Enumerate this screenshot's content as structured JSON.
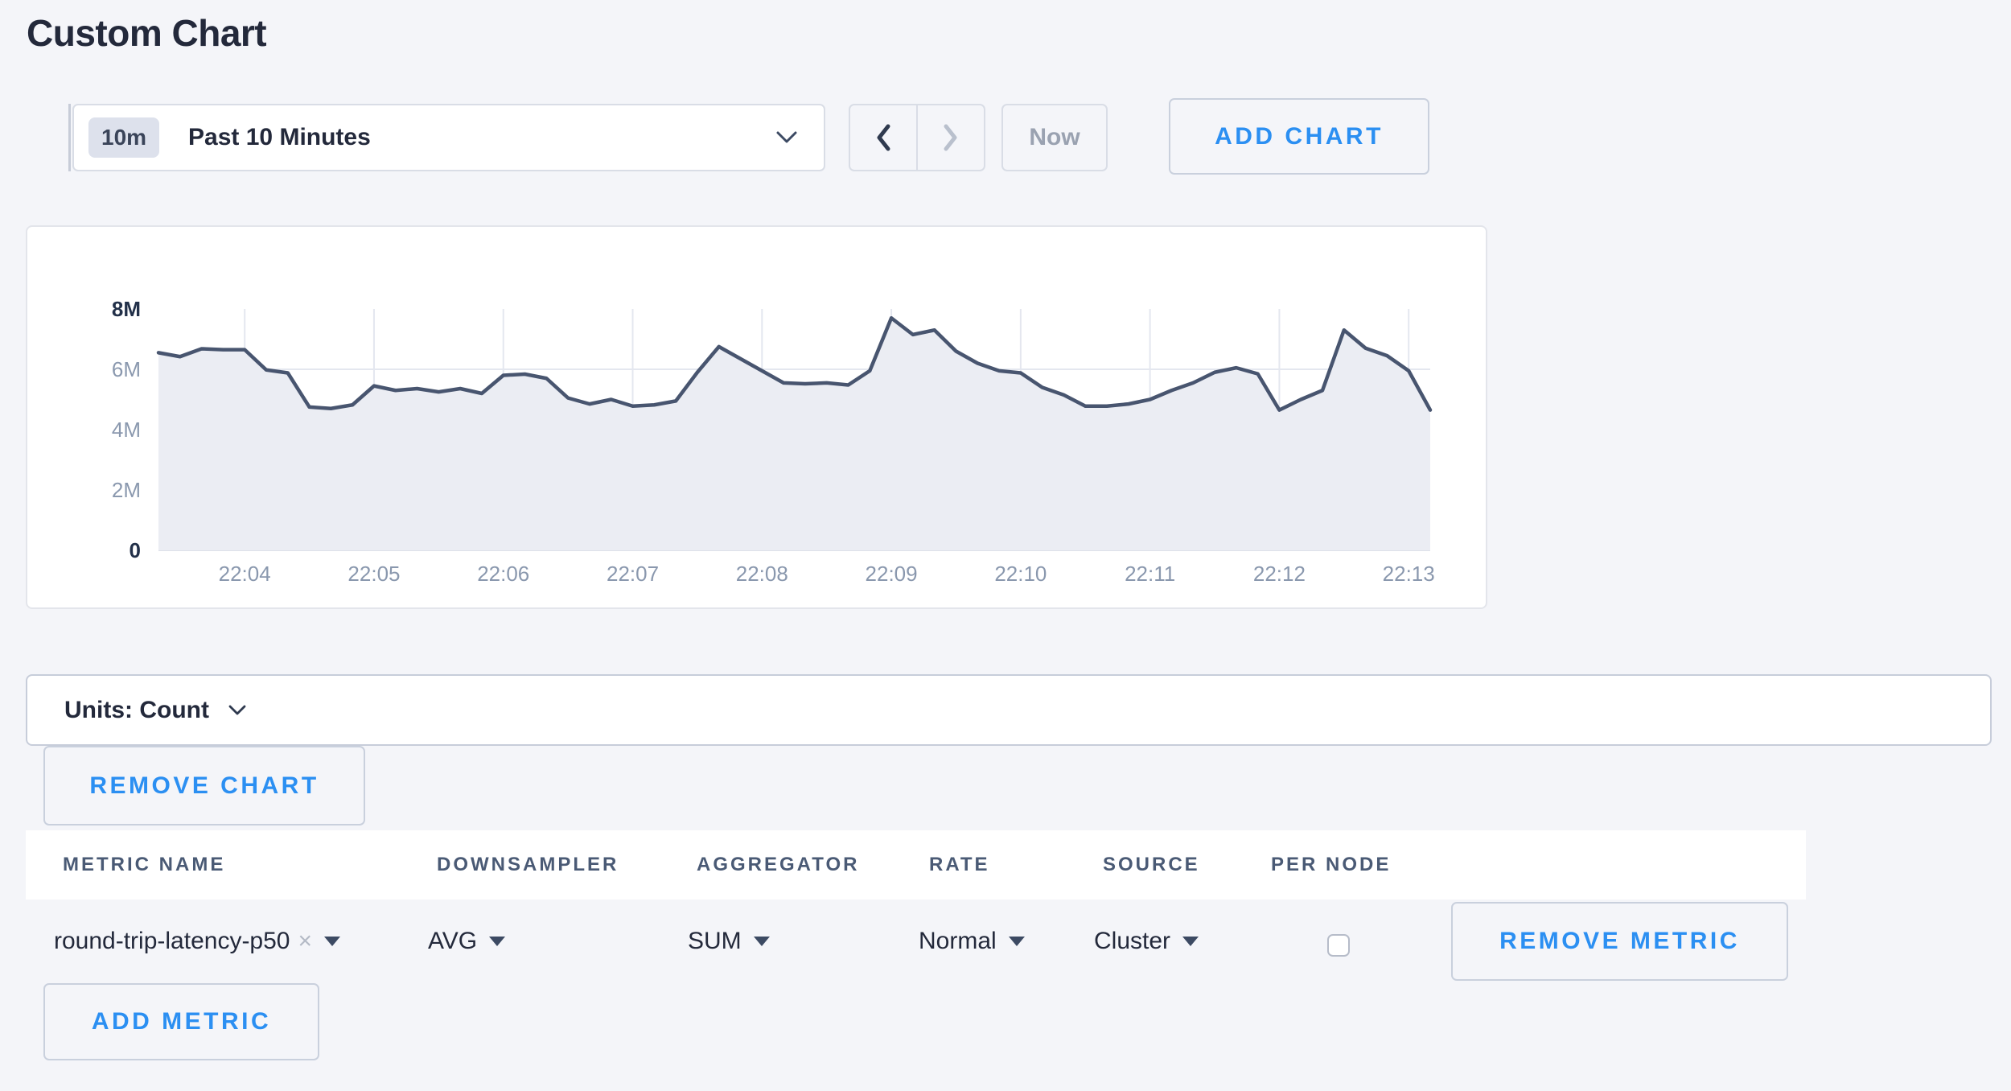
{
  "page": {
    "title": "Custom Chart"
  },
  "toolbar": {
    "time_badge": "10m",
    "time_label": "Past 10 Minutes",
    "prev_icon": "chevron-left",
    "next_icon": "chevron-right",
    "now_label": "Now",
    "add_chart_label": "ADD CHART"
  },
  "units_bar": {
    "label": "Units: Count"
  },
  "chart_actions": {
    "remove_chart_label": "REMOVE CHART"
  },
  "chart_data": {
    "type": "area",
    "title": "",
    "xlabel": "",
    "ylabel": "count",
    "ymax_millions": 8,
    "grid": true,
    "legend": "none",
    "y_ticks": [
      {
        "v": 0,
        "label": "0",
        "strong": true
      },
      {
        "v": 2,
        "label": "2M",
        "strong": false
      },
      {
        "v": 4,
        "label": "4M",
        "strong": false
      },
      {
        "v": 6,
        "label": "6M",
        "strong": false
      },
      {
        "v": 8,
        "label": "8M",
        "strong": true
      }
    ],
    "x_tick_labels": [
      "22:04",
      "22:05",
      "22:06",
      "22:07",
      "22:08",
      "22:09",
      "22:10",
      "22:11",
      "22:12",
      "22:13"
    ],
    "x_tick_first_index": 4,
    "x_tick_step": 6,
    "x_start": "22:03:20",
    "x_interval_seconds": 10,
    "series": [
      {
        "name": "round-trip-latency-p50",
        "values_millions": [
          6.55,
          6.42,
          6.68,
          6.65,
          6.65,
          5.98,
          5.88,
          4.75,
          4.7,
          4.82,
          5.45,
          5.3,
          5.36,
          5.25,
          5.36,
          5.2,
          5.8,
          5.84,
          5.7,
          5.05,
          4.85,
          5.0,
          4.78,
          4.82,
          4.95,
          5.9,
          6.75,
          6.35,
          5.95,
          5.55,
          5.52,
          5.55,
          5.48,
          5.95,
          7.7,
          7.15,
          7.3,
          6.6,
          6.2,
          5.95,
          5.88,
          5.4,
          5.15,
          4.78,
          4.78,
          4.85,
          5.0,
          5.3,
          5.55,
          5.9,
          6.05,
          5.85,
          4.65,
          5.0,
          5.3,
          7.3,
          6.7,
          6.45,
          5.95,
          4.65
        ]
      }
    ],
    "colors": {
      "line": "#48556f",
      "fill": "#ebedf3",
      "grid": "#e4e7ef",
      "baseline": "#dde1e9",
      "axis_text": "#8a98ae",
      "axis_text_strong": "#223049"
    }
  },
  "metrics_table": {
    "columns": [
      "METRIC NAME",
      "DOWNSAMPLER",
      "AGGREGATOR",
      "RATE",
      "SOURCE",
      "PER NODE"
    ],
    "rows": [
      {
        "metric_name": "round-trip-latency-p50",
        "remove_tag_icon": "x",
        "downsampler": "AVG",
        "aggregator": "SUM",
        "rate": "Normal",
        "source": "Cluster",
        "per_node_checked": false,
        "remove_label": "REMOVE METRIC"
      }
    ],
    "add_metric_label": "ADD METRIC"
  },
  "colors": {
    "accent_blue": "#2b8ff2",
    "page_bg": "#f4f5f9"
  }
}
